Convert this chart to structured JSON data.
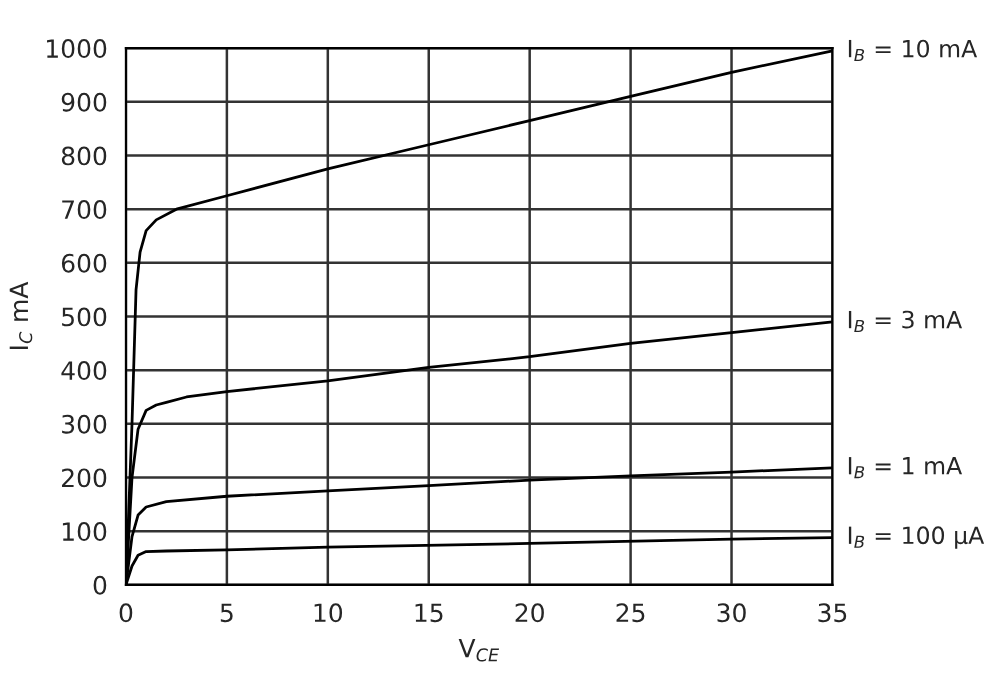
{
  "chart_data": {
    "type": "line",
    "xlabel": "V$_{CE}$",
    "ylabel": "I$_{C}$ mA",
    "xlim": [
      0,
      35
    ],
    "xticks": [
      0,
      5,
      10,
      15,
      20,
      25,
      30,
      35
    ],
    "ylim": [
      0,
      1000
    ],
    "yticks": [
      0,
      100,
      200,
      300,
      400,
      500,
      600,
      700,
      800,
      900,
      1000
    ],
    "grid": true,
    "legend": false,
    "marker": "none",
    "line_style": "solid",
    "series": [
      {
        "name": "I$_{B}$ = 10 mA",
        "color": "#000000",
        "x": [
          0,
          0.3,
          0.5,
          0.7,
          1,
          1.5,
          2.5,
          5,
          10,
          15,
          20,
          25,
          30,
          35
        ],
        "values": [
          0,
          300,
          550,
          620,
          660,
          680,
          700,
          725,
          775,
          820,
          865,
          910,
          955,
          995
        ]
      },
      {
        "name": "I$_{B}$ = 3 mA",
        "color": "#000000",
        "x": [
          0,
          0.3,
          0.6,
          1,
          1.5,
          2,
          3,
          5,
          10,
          15,
          20,
          25,
          30,
          35
        ],
        "values": [
          0,
          200,
          290,
          325,
          335,
          340,
          350,
          360,
          380,
          405,
          425,
          450,
          470,
          490
        ]
      },
      {
        "name": "I$_{B}$ = 1 mA",
        "color": "#000000",
        "x": [
          0,
          0.3,
          0.6,
          1,
          2,
          5,
          10,
          15,
          20,
          25,
          30,
          35
        ],
        "values": [
          0,
          90,
          130,
          145,
          155,
          165,
          175,
          185,
          195,
          203,
          210,
          218
        ]
      },
      {
        "name": "I$_{B}$ = 100 µA",
        "color": "#000000",
        "x": [
          0,
          0.3,
          0.6,
          1,
          2,
          5,
          10,
          20,
          30,
          35
        ],
        "values": [
          0,
          35,
          55,
          62,
          63,
          65,
          70,
          77,
          85,
          88
        ]
      }
    ]
  }
}
